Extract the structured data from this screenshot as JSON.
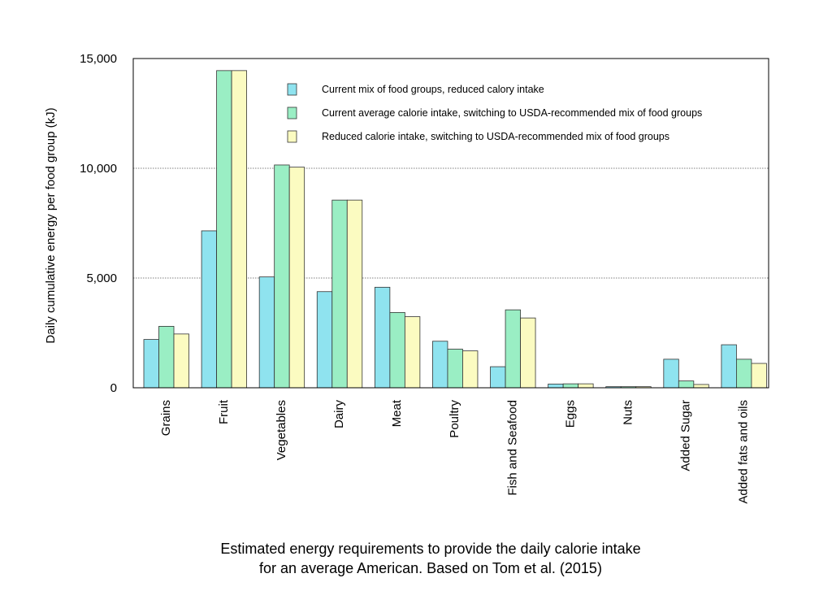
{
  "chart_data": {
    "type": "bar",
    "title": "",
    "xlabel": "",
    "ylabel": "Daily cumulative energy per food group (kJ)",
    "ylim": [
      0,
      15000
    ],
    "yticks": [
      0,
      5000,
      10000,
      15000
    ],
    "ytick_labels": [
      "0",
      "5,000",
      "10,000",
      "15,000"
    ],
    "grid": "horizontal major lines",
    "legend_position": "top-right",
    "categories": [
      "Grains",
      "Fruit",
      "Vegetables",
      "Dairy",
      "Meat",
      "Poultry",
      "Fish and Seafood",
      "Eggs",
      "Nuts",
      "Added Sugar",
      "Added fats and oils"
    ],
    "series": [
      {
        "name": "Current mix of food groups, reduced calory intake",
        "color": "#8fe3ef",
        "values": [
          2200,
          7150,
          5050,
          4380,
          4580,
          2120,
          960,
          170,
          50,
          1300,
          1960
        ]
      },
      {
        "name": "Current average calorie intake, switching to USDA-recommended mix of food groups",
        "color": "#9aeec4",
        "values": [
          2800,
          14450,
          10150,
          8550,
          3430,
          1760,
          3550,
          180,
          50,
          310,
          1300
        ]
      },
      {
        "name": "Reduced calorie intake, switching to USDA-recommended mix of food groups",
        "color": "#fbfbc1",
        "values": [
          2450,
          14450,
          10050,
          8550,
          3240,
          1680,
          3180,
          180,
          50,
          150,
          1110
        ]
      }
    ]
  },
  "caption": {
    "line1": "Estimated energy requirements to provide the daily calorie intake",
    "line2": "for an average American. Based on Tom et al. (2015)"
  }
}
